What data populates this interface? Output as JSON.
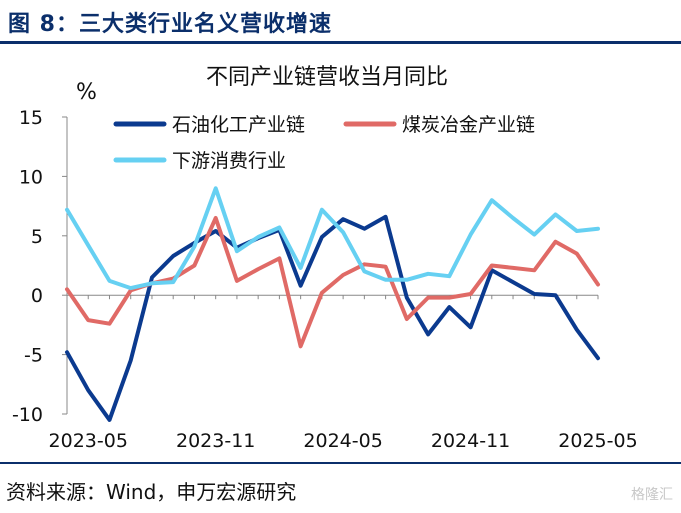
{
  "figure_title": "图 8：三大类行业名义营收增速",
  "source": "资料来源：Wind，申万宏源研究",
  "watermark": "格隆汇",
  "chart_data": {
    "type": "line",
    "title": "不同产业链营收当月同比",
    "ylabel": "%",
    "ylim": [
      -10,
      15
    ],
    "yticks": [
      15,
      10,
      5,
      0,
      -5,
      -10
    ],
    "x_tick_labels": [
      "2023-05",
      "2023-11",
      "2024-05",
      "2024-11",
      "2025-05"
    ],
    "x": [
      "2023-04",
      "2023-05",
      "2023-06",
      "2023-07",
      "2023-08",
      "2023-09",
      "2023-10",
      "2023-11",
      "2023-12",
      "2024-01",
      "2024-02",
      "2024-03",
      "2024-04",
      "2024-05",
      "2024-06",
      "2024-07",
      "2024-08",
      "2024-09",
      "2024-10",
      "2024-11",
      "2024-12",
      "2025-01",
      "2025-02",
      "2025-03",
      "2025-04",
      "2025-05"
    ],
    "grid": false,
    "legend": "top",
    "series": [
      {
        "name": "石油化工产业链",
        "color": "#0b3a8f",
        "values": [
          -4.8,
          -8.0,
          -10.5,
          -5.5,
          1.5,
          3.3,
          4.4,
          5.4,
          4.0,
          4.8,
          5.5,
          0.8,
          4.9,
          6.4,
          5.6,
          6.6,
          -0.2,
          -3.3,
          -1.0,
          -2.7,
          2.1,
          1.1,
          0.1,
          0.0,
          -2.9,
          -5.3
        ]
      },
      {
        "name": "煤炭冶金产业链",
        "color": "#e06a66",
        "values": [
          0.5,
          -2.1,
          -2.4,
          0.4,
          1.0,
          1.4,
          2.5,
          6.5,
          1.2,
          2.2,
          3.1,
          -4.3,
          0.2,
          1.7,
          2.6,
          2.4,
          -2.0,
          -0.2,
          -0.2,
          0.1,
          2.5,
          2.3,
          2.1,
          4.5,
          3.5,
          0.9
        ]
      },
      {
        "name": "下游消费行业",
        "color": "#66d0f2",
        "values": [
          7.2,
          4.2,
          1.2,
          0.6,
          1.0,
          1.1,
          4.1,
          9.0,
          3.7,
          4.9,
          5.7,
          2.3,
          7.2,
          5.3,
          2.0,
          1.3,
          1.3,
          1.8,
          1.6,
          5.1,
          8.0,
          6.5,
          5.1,
          6.8,
          5.4,
          5.6
        ]
      }
    ]
  }
}
